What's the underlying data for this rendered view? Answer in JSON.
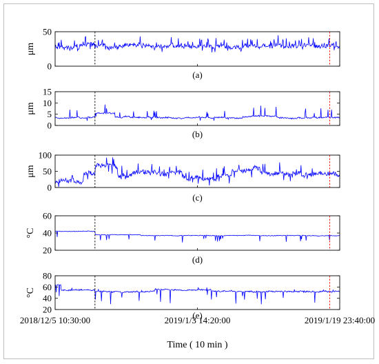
{
  "chart_data": [
    {
      "type": "line",
      "panel_label": "(a)",
      "ylabel": "μm",
      "ylim": [
        0,
        50
      ],
      "yticks": [
        0,
        50
      ],
      "color": "#0000ff",
      "style": {
        "base": 29,
        "noise": 4,
        "spike": 9,
        "spike_prob": 0.08,
        "dip": 5,
        "dip_prob": 0.04,
        "seed": 11
      },
      "segments": []
    },
    {
      "type": "line",
      "panel_label": "(b)",
      "ylabel": "μm",
      "ylim": [
        0,
        15
      ],
      "yticks": [
        0,
        5,
        10,
        15
      ],
      "color": "#0000ff",
      "style": {
        "base": 3.5,
        "noise": 0.4,
        "spike": 3,
        "spike_prob": 0.035,
        "dip": 1.5,
        "dip_prob": 0.01,
        "seed": 23
      },
      "segments": [
        {
          "from": 0.14,
          "to": 0.21,
          "base": 5.5,
          "spike": 4
        },
        {
          "from": 0.24,
          "to": 0.26,
          "base": 4,
          "spike": 8
        },
        {
          "from": 0.66,
          "to": 0.78,
          "base": 4,
          "spike": 4
        }
      ]
    },
    {
      "type": "line",
      "panel_label": "(c)",
      "ylabel": "μm",
      "ylim": [
        0,
        100
      ],
      "yticks": [
        0,
        50,
        100
      ],
      "color": "#0000ff",
      "style": {
        "base": 40,
        "noise": 9,
        "spike": 25,
        "spike_prob": 0.05,
        "dip": 20,
        "dip_prob": 0.04,
        "seed": 37
      },
      "segments": [
        {
          "from": 0.0,
          "to": 0.04,
          "base": 20
        },
        {
          "from": 0.04,
          "to": 0.1,
          "base": 15
        },
        {
          "from": 0.14,
          "to": 0.22,
          "base": 65
        },
        {
          "from": 0.3,
          "to": 0.45,
          "base": 45
        },
        {
          "from": 0.45,
          "to": 0.57,
          "base": 30
        },
        {
          "from": 0.62,
          "to": 0.72,
          "base": 55
        },
        {
          "from": 0.72,
          "to": 1.0,
          "base": 45
        }
      ]
    },
    {
      "type": "line",
      "panel_label": "(d)",
      "ylabel": "°C",
      "ylim": [
        20,
        60
      ],
      "yticks": [
        20,
        40,
        60
      ],
      "color": "#0000ff",
      "style": {
        "base": 37,
        "noise": 0.4,
        "spike": 0,
        "spike_prob": 0.0,
        "dip": 6,
        "dip_prob": 0.05,
        "seed": 41
      },
      "segments": [
        {
          "from": 0.0,
          "to": 0.14,
          "base": 42,
          "dip_prob": 0.005
        },
        {
          "from": 0.14,
          "to": 0.3,
          "base": 38
        },
        {
          "from": 0.3,
          "to": 0.55,
          "base": 37
        }
      ]
    },
    {
      "type": "line",
      "panel_label": "(e)",
      "ylabel": "°C",
      "ylim": [
        20,
        80
      ],
      "yticks": [
        20,
        40,
        60,
        80
      ],
      "color": "#0000ff",
      "style": {
        "base": 52,
        "noise": 1.5,
        "spike": 4,
        "spike_prob": 0.02,
        "dip": 18,
        "dip_prob": 0.05,
        "seed": 53
      },
      "segments": [
        {
          "from": 0.0,
          "to": 0.02,
          "base": 64
        },
        {
          "from": 0.02,
          "to": 0.14,
          "base": 55,
          "dip_prob": 0.01
        },
        {
          "from": 0.35,
          "to": 0.55,
          "base": 55
        }
      ]
    }
  ],
  "x_axis": {
    "ticks": [
      {
        "pos": 0.0,
        "label": "2018/12/5 10:30:00"
      },
      {
        "pos": 0.5,
        "label": "2019/1/3 14:20:00"
      },
      {
        "pos": 1.0,
        "label": "2019/1/19 23:40:00"
      }
    ],
    "xlabel": "Time ( 10 min )"
  },
  "markers": [
    {
      "pos": 0.14,
      "color": "#000000",
      "style": "dashed"
    },
    {
      "pos": 0.965,
      "color": "#ff0000",
      "style": "dashed"
    }
  ]
}
